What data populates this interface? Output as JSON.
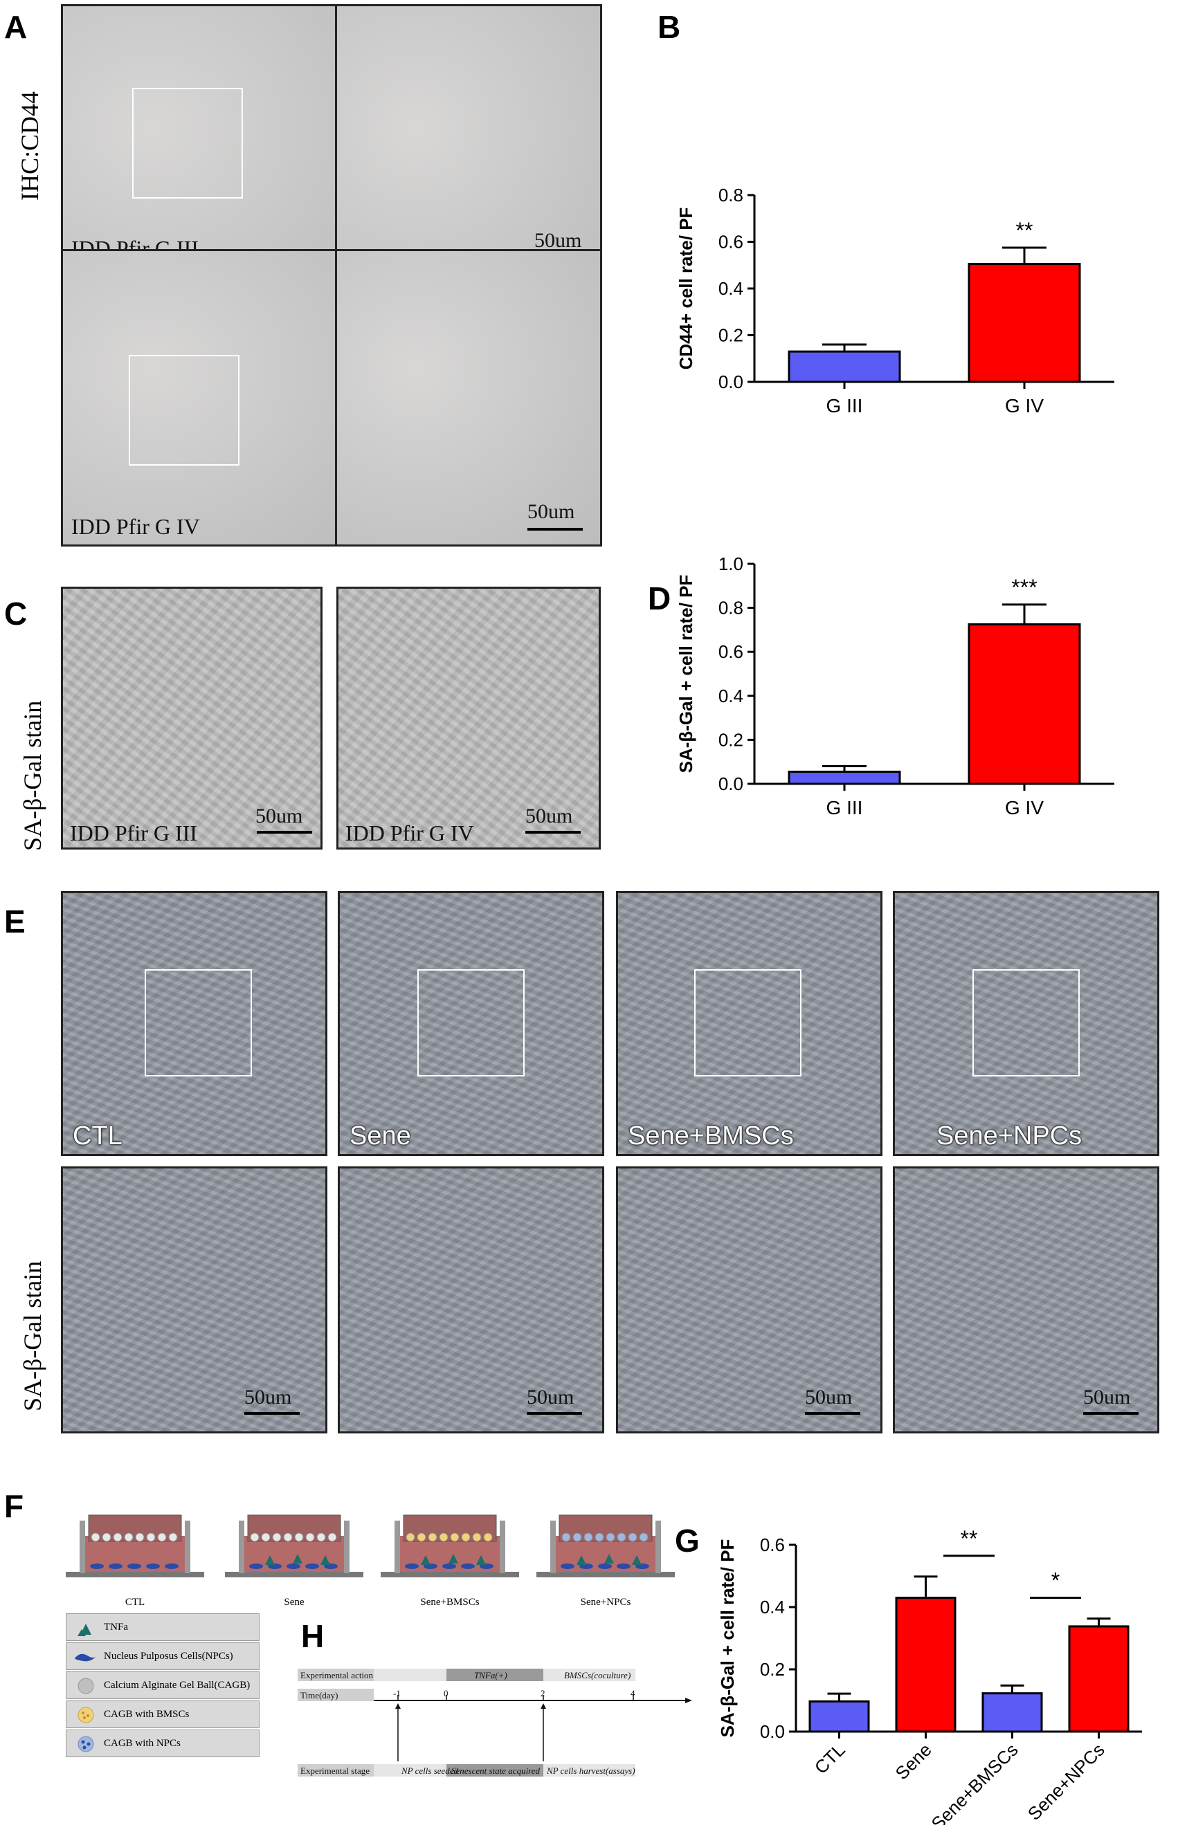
{
  "panels": {
    "A": "A",
    "B": "B",
    "C": "C",
    "D": "D",
    "E": "E",
    "F": "F",
    "G": "G",
    "H": "H"
  },
  "panel_a": {
    "side_label": "IHC:CD44",
    "top_label": "IDD Pfir G III",
    "bottom_label": "IDD Pfir G IV",
    "scale_top": "50um",
    "scale_bottom": "50um"
  },
  "panel_c": {
    "side_label": "SA-β-Gal stain",
    "left_label": "IDD Pfir G III",
    "right_label": "IDD Pfir G IV",
    "scale_left": "50um",
    "scale_right": "50um"
  },
  "panel_e": {
    "side_label": "SA-β-Gal stain",
    "labels": [
      "CTL",
      "Sene",
      "Sene+BMSCs",
      "Sene+NPCs"
    ],
    "scales": [
      "50um",
      "50um",
      "50um",
      "50um"
    ]
  },
  "panel_f": {
    "conditions": [
      "CTL",
      "Sene",
      "Sene+BMSCs",
      "Sene+NPCs"
    ],
    "legend": [
      "TNFa",
      "Nucleus Pulposus Cells(NPCs)",
      "Calcium Alginate Gel Ball(CAGB)",
      "CAGB with BMSCs",
      "CAGB with NPCs"
    ]
  },
  "panel_h": {
    "row_labels": [
      "Experimental action",
      "Time(day)",
      "Experimental stage"
    ],
    "actions": [
      "TNFa(+)",
      "BMSCs(coculture)"
    ],
    "days": [
      "-1",
      "0",
      "2",
      "4"
    ],
    "stages": [
      "NP cells seeded",
      "Senescent state acquired",
      "NP cells harvest(assays)"
    ]
  },
  "colors": {
    "blue": "#5b5bf5",
    "red": "#ff0000"
  },
  "chart_data": [
    {
      "id": "B",
      "type": "bar",
      "ylabel": "CD44+ cell rate/ PF",
      "categories": [
        "G III",
        "G IV"
      ],
      "values": [
        0.13,
        0.505
      ],
      "errors": [
        0.03,
        0.07
      ],
      "colors": [
        "#5b5bf5",
        "#ff0000"
      ],
      "ylim": [
        0,
        0.8
      ],
      "yticks": [
        "0.0",
        "0.2",
        "0.4",
        "0.6",
        "0.8"
      ],
      "annotations": [
        "",
        "**"
      ]
    },
    {
      "id": "D",
      "type": "bar",
      "ylabel": "SA-β-Gal + cell rate/ PF",
      "categories": [
        "G III",
        "G IV"
      ],
      "values": [
        0.055,
        0.725
      ],
      "errors": [
        0.025,
        0.09
      ],
      "colors": [
        "#5b5bf5",
        "#ff0000"
      ],
      "ylim": [
        0,
        1.0
      ],
      "yticks": [
        "0.0",
        "0.2",
        "0.4",
        "0.6",
        "0.8",
        "1.0"
      ],
      "annotations": [
        "",
        "***"
      ]
    },
    {
      "id": "G",
      "type": "bar",
      "ylabel": "SA-β-Gal + cell rate/ PF",
      "categories": [
        "CTL",
        "Sene",
        "Sene+BMSCs",
        "Sene+NPCs"
      ],
      "values": [
        0.097,
        0.43,
        0.123,
        0.338
      ],
      "errors": [
        0.025,
        0.068,
        0.025,
        0.025
      ],
      "colors": [
        "#5b5bf5",
        "#ff0000",
        "#5b5bf5",
        "#ff0000"
      ],
      "ylim": [
        0,
        0.6
      ],
      "yticks": [
        "0.0",
        "0.2",
        "0.4",
        "0.6"
      ],
      "significance": [
        {
          "between": [
            "Sene",
            "Sene+BMSCs"
          ],
          "label": "**"
        },
        {
          "between": [
            "Sene+BMSCs",
            "Sene+NPCs"
          ],
          "label": "*"
        }
      ]
    }
  ]
}
